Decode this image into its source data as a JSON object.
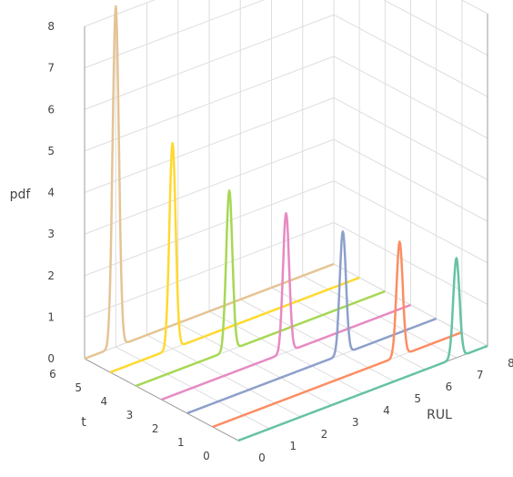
{
  "chart_data": {
    "type": "line",
    "projection": "3d",
    "axes": {
      "x": {
        "label": "RUL",
        "range": [
          0,
          8
        ],
        "ticks": [
          "0",
          "1",
          "2",
          "3",
          "4",
          "5",
          "6",
          "7",
          "8"
        ]
      },
      "y": {
        "label": "t",
        "range": [
          0,
          6
        ],
        "ticks": [
          "0",
          "1",
          "2",
          "3",
          "4",
          "5",
          "6"
        ]
      },
      "z": {
        "label": "pdf",
        "range": [
          0,
          8
        ],
        "ticks": [
          "0",
          "1",
          "2",
          "3",
          "4",
          "5",
          "6",
          "7",
          "8"
        ]
      }
    },
    "grid": true,
    "legend": "none",
    "curve_shape": "normal density over RUL, drawn at fixed t",
    "series": [
      {
        "t": 0,
        "color": "#66c2a5",
        "peak_rul": 7.0,
        "peak_pdf": 2.4
      },
      {
        "t": 1,
        "color": "#fc8d62",
        "peak_rul": 6.0,
        "peak_pdf": 2.75
      },
      {
        "t": 2,
        "color": "#8da0cb",
        "peak_rul": 5.0,
        "peak_pdf": 2.95
      },
      {
        "t": 3,
        "color": "#e78ac3",
        "peak_rul": 4.0,
        "peak_pdf": 3.35
      },
      {
        "t": 4,
        "color": "#a6d854",
        "peak_rul": 3.0,
        "peak_pdf": 3.85
      },
      {
        "t": 5,
        "color": "#ffd92f",
        "peak_rul": 2.0,
        "peak_pdf": 4.95
      },
      {
        "t": 6,
        "color": "#e5c494",
        "peak_rul": 1.0,
        "peak_pdf": 8.2
      }
    ]
  }
}
